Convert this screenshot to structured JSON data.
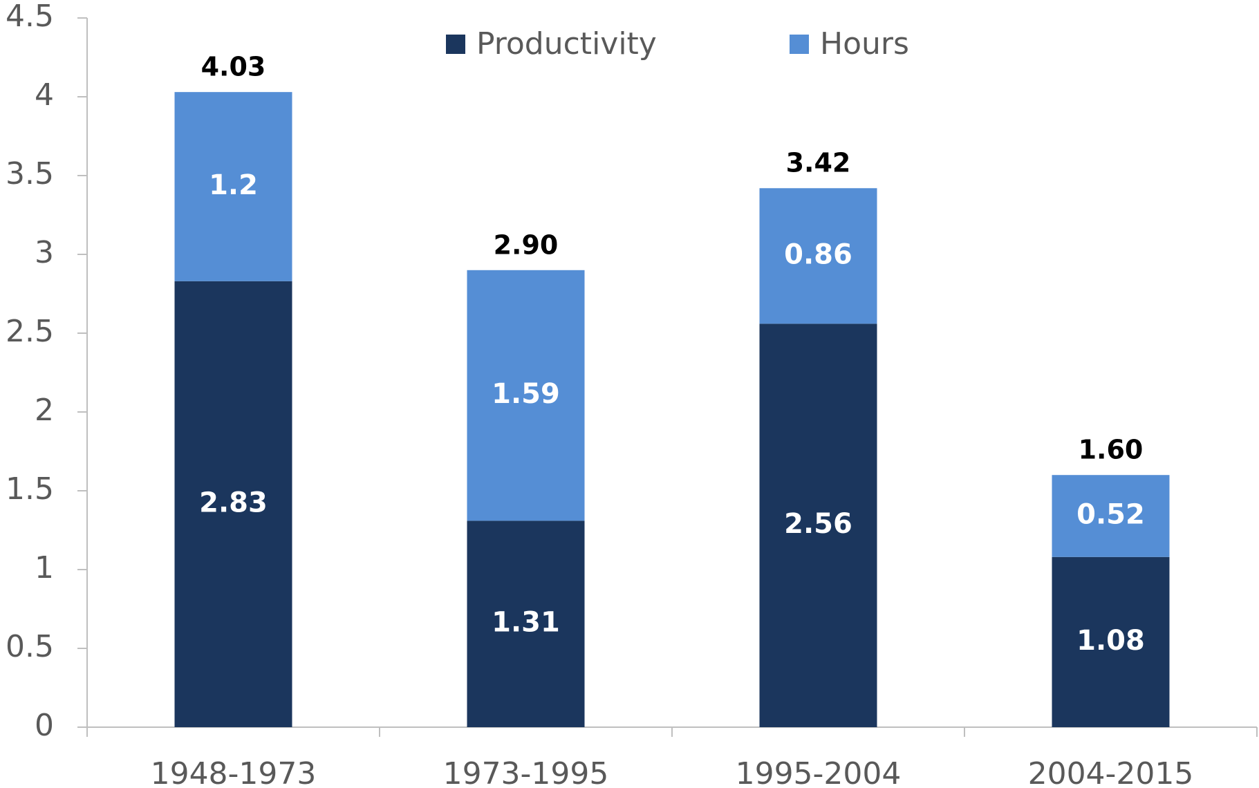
{
  "chart_data": {
    "type": "stacked_bar",
    "categories": [
      "1948-1973",
      "1973-1995",
      "1995-2004",
      "2004-2015"
    ],
    "series": [
      {
        "name": "Productivity",
        "color": "#1b365d",
        "values": [
          2.83,
          1.31,
          2.56,
          1.08
        ]
      },
      {
        "name": "Hours",
        "color": "#558ed5",
        "values": [
          1.2,
          1.59,
          0.86,
          0.52
        ]
      }
    ],
    "totals": {
      "values": [
        4.03,
        2.9,
        3.42,
        1.6
      ],
      "value_labels": [
        "4.03",
        "2.90",
        "3.42",
        "1.60"
      ]
    },
    "ylim": [
      0,
      4.5
    ],
    "yticks": [
      0,
      0.5,
      1,
      1.5,
      2,
      2.5,
      3,
      3.5,
      4,
      4.5
    ],
    "grid": false,
    "legend": "top"
  }
}
